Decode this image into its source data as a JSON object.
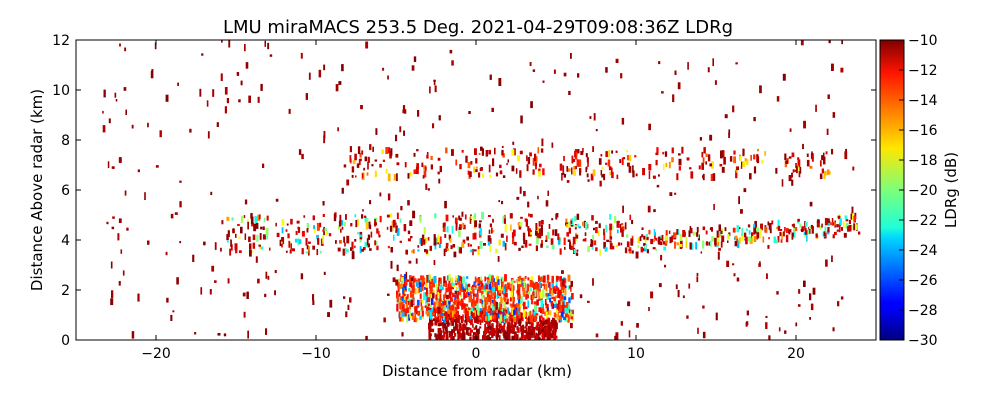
{
  "chart_data": {
    "type": "scatter",
    "title": "LMU miraMACS 253.5 Deg. 2021-04-29T09:08:36Z  LDRg",
    "xlabel": "Distance from radar (km)",
    "ylabel": "Distance Above radar  (km)",
    "xlim": [
      -25,
      25
    ],
    "ylim": [
      0,
      12
    ],
    "xticks": [
      -20,
      -10,
      0,
      10,
      20
    ],
    "yticks": [
      0,
      2,
      4,
      6,
      8,
      10,
      12
    ],
    "colorbar": {
      "label": "LDRg (dB)",
      "range": [
        -30,
        -10
      ],
      "ticks": [
        -10,
        -12,
        -14,
        -16,
        -18,
        -20,
        -22,
        -24,
        -26,
        -28,
        -30
      ],
      "colormap": "jet"
    },
    "features": [
      {
        "name": "near-surface clutter",
        "x_range": [
          -3,
          5
        ],
        "y_range": [
          0,
          1.2
        ],
        "ldr_range": [
          -12,
          -10
        ]
      },
      {
        "name": "low mixed-phase layer",
        "x_range": [
          -5,
          6
        ],
        "y_range": [
          0.8,
          2.5
        ],
        "ldr_range": [
          -27,
          -12
        ]
      },
      {
        "name": "mid-level cloud layer",
        "x_range": [
          -16,
          24
        ],
        "y_range": [
          3.5,
          5.0
        ],
        "ldr_range": [
          -24,
          -10
        ]
      },
      {
        "name": "upper cloud layer",
        "x_range": [
          -8,
          22
        ],
        "y_range": [
          6.5,
          7.6
        ],
        "ldr_range": [
          -18,
          -10
        ]
      },
      {
        "name": "sparse noise",
        "x_range": [
          -24,
          24
        ],
        "y_range": [
          0,
          12
        ],
        "ldr_range": [
          -11,
          -10
        ]
      }
    ]
  }
}
